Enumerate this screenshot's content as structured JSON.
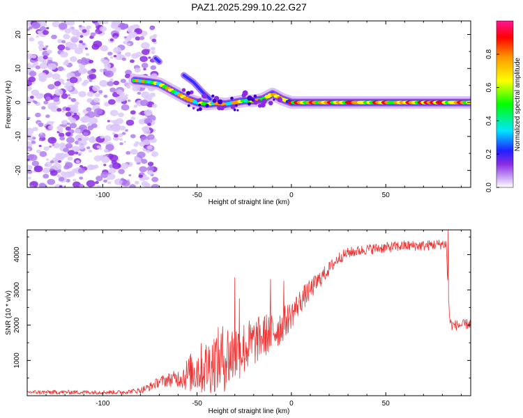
{
  "title": "PAZ1.2025.299.10.22.G27",
  "chart_data": [
    {
      "type": "heatmap",
      "name": "spectrogram",
      "xlabel": "Height of straight line (km)",
      "ylabel": "Frequency (Hz)",
      "xlim": [
        -140,
        95
      ],
      "ylim": [
        -25,
        24
      ],
      "xticks": [
        -100,
        -50,
        0,
        50
      ],
      "xtick_labels": [
        "-100",
        "-50",
        "0",
        "50"
      ],
      "yticks": [
        -20,
        -10,
        0,
        10,
        20
      ],
      "ytick_labels": [
        "-20",
        "-10",
        "0",
        "10",
        "20"
      ],
      "ridge": {
        "x": [
          -83,
          -75,
          -70,
          -65,
          -60,
          -55,
          -50,
          -45,
          -40,
          -35,
          -30,
          -25,
          -20,
          -15,
          -10,
          -5,
          0,
          20,
          40,
          60,
          80,
          95
        ],
        "y": [
          6.5,
          6,
          5.5,
          4,
          2.5,
          1,
          0,
          -0.5,
          -0.2,
          -0.5,
          0,
          0.5,
          0.5,
          1,
          2.5,
          1,
          0,
          0,
          0,
          0,
          0,
          0
        ]
      },
      "branches": [
        {
          "x": [
            -57,
            -52,
            -47,
            -43
          ],
          "y": [
            8,
            6,
            3,
            1
          ]
        },
        {
          "x": [
            -72,
            -70
          ],
          "y": [
            13,
            12
          ]
        }
      ],
      "noise_region_xlim": [
        -140,
        -78
      ],
      "colorbar": {
        "label": "Normalized spectral amplitude",
        "range": [
          0,
          1
        ],
        "ticks": [
          0,
          0.2,
          0.4,
          0.6,
          0.8
        ],
        "tick_labels": [
          "0.0",
          "0.2",
          "0.4",
          "0.6",
          "0.8"
        ],
        "colors": [
          "#ffffff",
          "#c9a3f5",
          "#8a2be2",
          "#2020ff",
          "#00e5ff",
          "#00ff00",
          "#ffff00",
          "#ff9900",
          "#ff0000",
          "#ff1493"
        ]
      }
    },
    {
      "type": "line",
      "name": "snr",
      "xlabel": "Height of straight line (km)",
      "ylabel": "SNR (10 * v/v)",
      "xlim": [
        -140,
        95
      ],
      "ylim": [
        0,
        4700
      ],
      "xticks": [
        -100,
        -50,
        0,
        50
      ],
      "xtick_labels": [
        "-100",
        "-50",
        "0",
        "50"
      ],
      "yticks": [
        1000,
        2000,
        3000,
        4000
      ],
      "ytick_labels": [
        "1000",
        "2000",
        "3000",
        "4000"
      ],
      "color": "#ee3333",
      "envelope": {
        "x": [
          -140,
          -90,
          -80,
          -75,
          -70,
          -65,
          -60,
          -55,
          -50,
          -45,
          -40,
          -35,
          -30,
          -25,
          -20,
          -15,
          -10,
          -5,
          0,
          5,
          10,
          15,
          20,
          25,
          30,
          40,
          50,
          60,
          70,
          80,
          82,
          83,
          84,
          85,
          90,
          95
        ],
        "y": [
          100,
          100,
          150,
          250,
          400,
          450,
          500,
          600,
          750,
          800,
          1000,
          1100,
          1200,
          1350,
          1500,
          1700,
          1800,
          2000,
          2300,
          2700,
          3000,
          3300,
          3600,
          3900,
          4050,
          4150,
          4200,
          4250,
          4250,
          4300,
          4300,
          3000,
          2100,
          2000,
          2000,
          2050
        ]
      },
      "spread": {
        "x": [
          -140,
          -85,
          -70,
          -60,
          -55,
          -50,
          -45,
          -40,
          -35,
          -30,
          -25,
          -20,
          -15,
          -10,
          -5,
          0,
          10,
          20,
          30,
          95
        ],
        "y": [
          60,
          60,
          150,
          250,
          500,
          700,
          800,
          900,
          1000,
          900,
          800,
          700,
          600,
          650,
          500,
          400,
          300,
          200,
          150,
          150
        ]
      },
      "spikes": [
        {
          "x": -30,
          "y": 3350
        },
        {
          "x": -27.5,
          "y": 2750
        },
        {
          "x": -11,
          "y": 3300
        },
        {
          "x": -4,
          "y": 3250
        },
        {
          "x": 83,
          "y": 4700
        }
      ]
    }
  ]
}
